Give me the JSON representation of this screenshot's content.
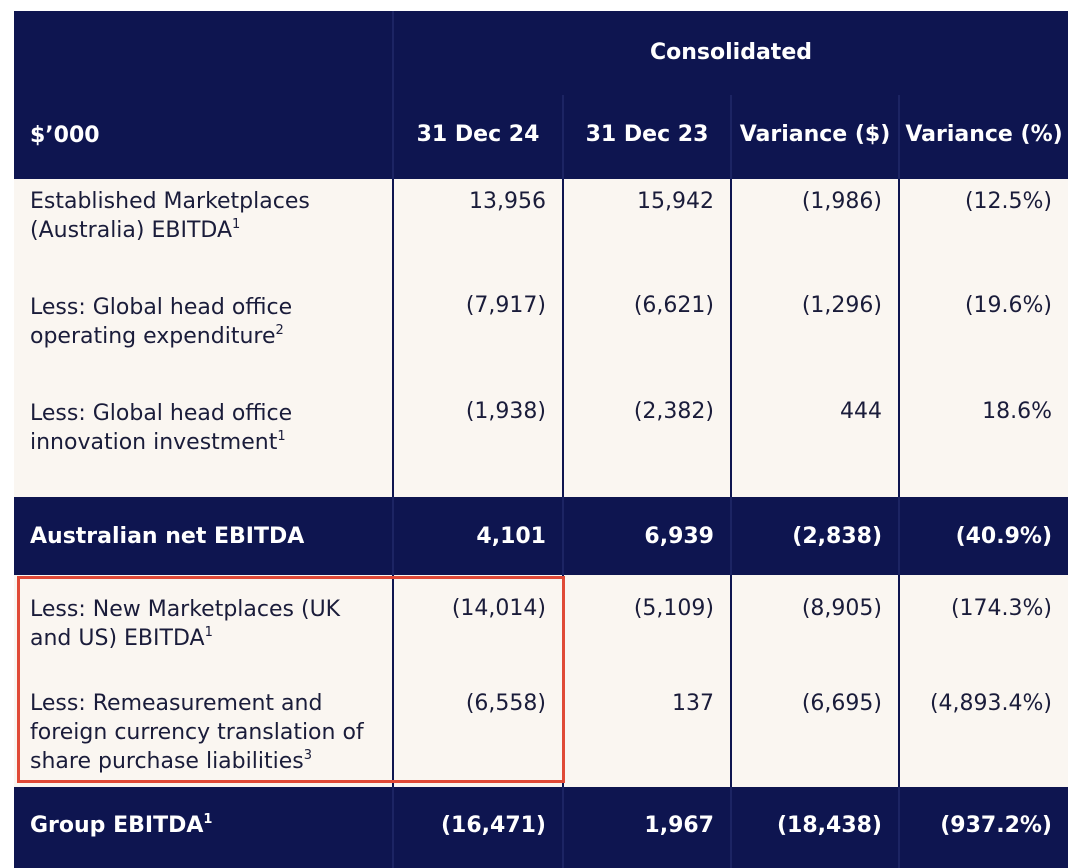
{
  "header": {
    "group_label": "Consolidated",
    "col0": "$’000",
    "col1": "31 Dec 24",
    "col2": "31 Dec 23",
    "col3": "Variance ($)",
    "col4": "Variance (%)"
  },
  "rows": [
    {
      "line1": "Established Marketplaces",
      "line2": "(Australia) EBITDA",
      "sup": "1",
      "v1": "13,956",
      "v2": "15,942",
      "v3": "(1,986)",
      "v4": "(12.5%)"
    },
    {
      "line1": "Less: Global head office",
      "line2": "operating expenditure",
      "sup": "2",
      "v1": "(7,917)",
      "v2": "(6,621)",
      "v3": "(1,296)",
      "v4": "(19.6%)"
    },
    {
      "line1": "Less: Global head office",
      "line2": "innovation investment",
      "sup": "1",
      "v1": "(1,938)",
      "v2": "(2,382)",
      "v3": "444",
      "v4": "18.6%"
    },
    {
      "label": "Australian net EBITDA",
      "v1": "4,101",
      "v2": "6,939",
      "v3": "(2,838)",
      "v4": "(40.9%)"
    },
    {
      "line1": "Less: New Marketplaces (UK",
      "line2": "and US) EBITDA",
      "sup": "1",
      "v1": "(14,014)",
      "v2": "(5,109)",
      "v3": "(8,905)",
      "v4": "(174.3%)"
    },
    {
      "line1": "Less: Remeasurement and",
      "line2": "foreign currency translation of",
      "line3": "share purchase liabilities",
      "sup": "3",
      "v1": "(6,558)",
      "v2": "137",
      "v3": "(6,695)",
      "v4": "(4,893.4%)"
    },
    {
      "label": "Group EBITDA",
      "sup": "1",
      "v1": "(16,471)",
      "v2": "1,967",
      "v3": "(18,438)",
      "v4": "(937.2%)"
    }
  ],
  "colors": {
    "navy": "#0e1550",
    "cream": "#faf6f1",
    "highlight": "#e04a37"
  }
}
